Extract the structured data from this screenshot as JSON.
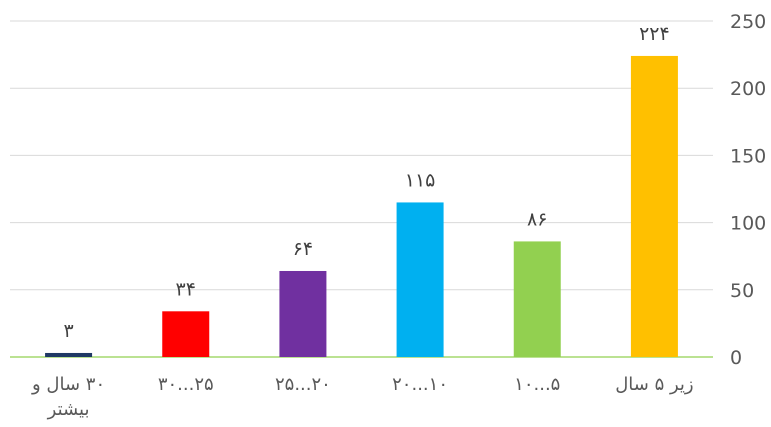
{
  "chart_data": {
    "type": "bar",
    "title": "",
    "xlabel": "",
    "ylabel": "",
    "categories": [
      [
        "زیر ۵ سال"
      ],
      [
        "۵...۱۰"
      ],
      [
        "۱۰...۲۰"
      ],
      [
        "۲۰...۲۵"
      ],
      [
        "۲۵...۳۰"
      ],
      [
        "۳۰ سال و",
        "بیشتر"
      ]
    ],
    "values": [
      224,
      86,
      115,
      64,
      34,
      3
    ],
    "value_labels": [
      "۲۲۴",
      "۸۶",
      "۱۱۵",
      "۶۴",
      "۳۴",
      "۳"
    ],
    "colors": [
      "#FFC000",
      "#92D050",
      "#00B0F0",
      "#7030A0",
      "#FF0000",
      "#1F3864"
    ],
    "ylim": [
      0,
      250
    ],
    "yticks": [
      0,
      50,
      100,
      150,
      200,
      250
    ],
    "y_axis_position": "right",
    "category_order": "right-to-left",
    "grid": true,
    "grid_color": "#D9D9D9",
    "baseline_color": "#92D050"
  }
}
